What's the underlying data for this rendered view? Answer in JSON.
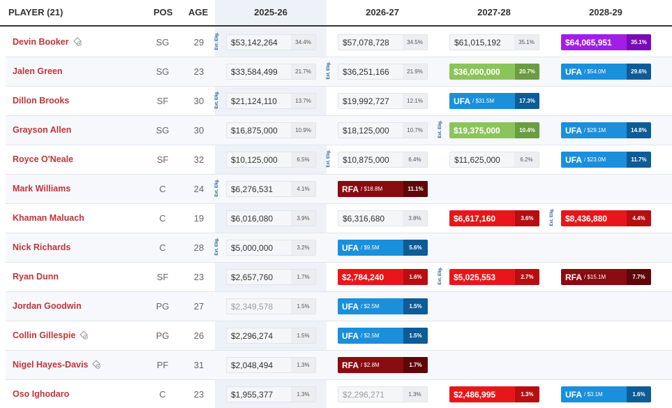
{
  "headers": {
    "player": "PLAYER (21)",
    "pos": "POS",
    "age": "AGE",
    "years": [
      "2025-26",
      "2026-27",
      "2027-28",
      "2028-29"
    ]
  },
  "ext_label": "Ext. Elig.",
  "colors": {
    "name": "#c0343b",
    "highlight_column": "#eef2f8",
    "player_option": "#a21ee8",
    "team_option": "#8bc45a",
    "non_guaranteed": "#e8161b",
    "rfa": "#8a0b10",
    "ufa": "#1a8fdc"
  },
  "rows": [
    {
      "name": "Devin Booker",
      "icon": true,
      "pos": "SG",
      "age": "29",
      "cells": [
        {
          "type": "plain",
          "amount": "$53,142,264",
          "pct": "34.4%",
          "ext": true
        },
        {
          "type": "plain",
          "amount": "$57,078,728",
          "pct": "34.5%"
        },
        {
          "type": "plain",
          "amount": "$61,015,192",
          "pct": "35.1%"
        },
        {
          "type": "purple",
          "amount": "$64,065,951",
          "pct": "35.1%"
        }
      ]
    },
    {
      "name": "Jalen Green",
      "icon": false,
      "pos": "SG",
      "age": "23",
      "cells": [
        {
          "type": "plain",
          "amount": "$33,584,499",
          "pct": "21.7%"
        },
        {
          "type": "plain",
          "amount": "$36,251,166",
          "pct": "21.9%",
          "ext": true
        },
        {
          "type": "green",
          "amount": "$36,000,000",
          "pct": "20.7%"
        },
        {
          "type": "ufa",
          "label": "UFA",
          "sub": "/ $54.0M",
          "pct": "29.6%"
        }
      ]
    },
    {
      "name": "Dillon Brooks",
      "icon": false,
      "pos": "SF",
      "age": "30",
      "cells": [
        {
          "type": "plain",
          "amount": "$21,124,110",
          "pct": "13.7%",
          "ext": true
        },
        {
          "type": "plain",
          "amount": "$19,992,727",
          "pct": "12.1%"
        },
        {
          "type": "ufa",
          "label": "UFA",
          "sub": "/ $31.5M",
          "pct": "17.3%"
        },
        null
      ]
    },
    {
      "name": "Grayson Allen",
      "icon": false,
      "pos": "SG",
      "age": "30",
      "cells": [
        {
          "type": "plain",
          "amount": "$16,875,000",
          "pct": "10.9%"
        },
        {
          "type": "plain",
          "amount": "$18,125,000",
          "pct": "10.7%"
        },
        {
          "type": "green",
          "amount": "$19,375,000",
          "pct": "10.4%",
          "ext": true
        },
        {
          "type": "ufa",
          "label": "UFA",
          "sub": "/ $29.1M",
          "pct": "14.8%"
        }
      ]
    },
    {
      "name": "Royce O'Neale",
      "icon": false,
      "pos": "SF",
      "age": "32",
      "cells": [
        {
          "type": "plain",
          "amount": "$10,125,000",
          "pct": "6.5%"
        },
        {
          "type": "plain",
          "amount": "$10,875,000",
          "pct": "6.4%",
          "ext": true
        },
        {
          "type": "plain",
          "amount": "$11,625,000",
          "pct": "6.2%"
        },
        {
          "type": "ufa",
          "label": "UFA",
          "sub": "/ $23.0M",
          "pct": "11.7%"
        }
      ]
    },
    {
      "name": "Mark Williams",
      "icon": false,
      "pos": "C",
      "age": "24",
      "cells": [
        {
          "type": "plain",
          "amount": "$6,276,531",
          "pct": "4.1%",
          "ext": true
        },
        {
          "type": "darkred",
          "label": "RFA",
          "sub": "/ $18.8M",
          "pct": "11.1%"
        },
        null,
        null
      ]
    },
    {
      "name": "Khaman Maluach",
      "icon": false,
      "pos": "C",
      "age": "19",
      "cells": [
        {
          "type": "plain",
          "amount": "$6,016,080",
          "pct": "3.9%"
        },
        {
          "type": "plain",
          "amount": "$6,316,680",
          "pct": "3.8%"
        },
        {
          "type": "red",
          "amount": "$6,617,160",
          "pct": "3.6%"
        },
        {
          "type": "red",
          "amount": "$8,436,880",
          "pct": "4.4%",
          "ext": true
        }
      ]
    },
    {
      "name": "Nick Richards",
      "icon": false,
      "pos": "C",
      "age": "28",
      "cells": [
        {
          "type": "plain",
          "amount": "$5,000,000",
          "pct": "3.2%",
          "ext": true
        },
        {
          "type": "ufa",
          "label": "UFA",
          "sub": "/ $9.5M",
          "pct": "5.6%"
        },
        null,
        null
      ]
    },
    {
      "name": "Ryan Dunn",
      "icon": false,
      "pos": "SF",
      "age": "23",
      "cells": [
        {
          "type": "plain",
          "amount": "$2,657,760",
          "pct": "1.7%"
        },
        {
          "type": "red",
          "amount": "$2,784,240",
          "pct": "1.6%"
        },
        {
          "type": "red",
          "amount": "$5,025,553",
          "pct": "2.7%",
          "ext": true
        },
        {
          "type": "darkred",
          "label": "RFA",
          "sub": "/ $15.1M",
          "pct": "7.7%"
        }
      ]
    },
    {
      "name": "Jordan Goodwin",
      "icon": false,
      "pos": "PG",
      "age": "27",
      "cells": [
        {
          "type": "plain dim",
          "amount": "$2,349,578",
          "pct": "1.5%"
        },
        {
          "type": "ufa",
          "label": "UFA",
          "sub": "/ $2.5M",
          "pct": "1.5%"
        },
        null,
        null
      ]
    },
    {
      "name": "Collin Gillespie",
      "icon": true,
      "pos": "PG",
      "age": "26",
      "cells": [
        {
          "type": "plain",
          "amount": "$2,296,274",
          "pct": "1.5%"
        },
        {
          "type": "ufa",
          "label": "UFA",
          "sub": "/ $2.5M",
          "pct": "1.5%"
        },
        null,
        null
      ]
    },
    {
      "name": "Nigel Hayes-Davis",
      "icon": true,
      "pos": "PF",
      "age": "31",
      "cells": [
        {
          "type": "plain",
          "amount": "$2,048,494",
          "pct": "1.3%"
        },
        {
          "type": "darkred",
          "label": "RFA",
          "sub": "/ $2.8M",
          "pct": "1.7%"
        },
        null,
        null
      ]
    },
    {
      "name": "Oso Ighodaro",
      "icon": false,
      "pos": "C",
      "age": "23",
      "cells": [
        {
          "type": "plain",
          "amount": "$1,955,377",
          "pct": "1.3%"
        },
        {
          "type": "plain dim",
          "amount": "$2,296,271",
          "pct": "1.3%"
        },
        {
          "type": "red",
          "amount": "$2,486,995",
          "pct": "1.3%"
        },
        {
          "type": "ufa",
          "label": "UFA",
          "sub": "/ $3.1M",
          "pct": "1.6%"
        }
      ]
    }
  ]
}
